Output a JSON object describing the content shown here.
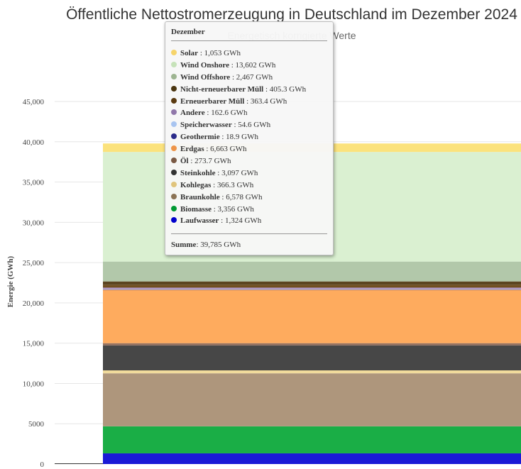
{
  "chart_data": {
    "type": "bar",
    "stacked": true,
    "title": "Öffentliche Nettostromerzeugung in Deutschland im Dezember 2024",
    "subtitle": "Energetisch korrigierte Werte",
    "ylabel": "Energie (GWh)",
    "ylim": [
      0,
      45000
    ],
    "yticks": [
      0,
      5000,
      10000,
      15000,
      20000,
      25000,
      30000,
      35000,
      40000,
      45000
    ],
    "ytick_labels": [
      "0",
      "5000",
      "10,000",
      "15,000",
      "20,000",
      "25,000",
      "30,000",
      "35,000",
      "40,000",
      "45,000"
    ],
    "categories": [
      "Dezember"
    ],
    "unit": "GWh",
    "series": [
      {
        "name": "Laufwasser",
        "value": 1324,
        "display": "1,324",
        "color": "#1a1ad6",
        "dot": "#0000cc"
      },
      {
        "name": "Biomasse",
        "value": 3356,
        "display": "3,356",
        "color": "#1aae46",
        "dot": "#009933"
      },
      {
        "name": "Braunkohle",
        "value": 6578,
        "display": "6,578",
        "color": "#ae967c",
        "dot": "#8b7355"
      },
      {
        "name": "Kohlegas",
        "value": 366.3,
        "display": "366.3",
        "color": "#f1db9c",
        "dot": "#e0c47c"
      },
      {
        "name": "Steinkohle",
        "value": 3097,
        "display": "3,097",
        "color": "#474747",
        "dot": "#333333"
      },
      {
        "name": "Öl",
        "value": 273.7,
        "display": "273.7",
        "color": "#937060",
        "dot": "#7a5a44"
      },
      {
        "name": "Erdgas",
        "value": 6663,
        "display": "6,663",
        "color": "#feab5e",
        "dot": "#ee9448"
      },
      {
        "name": "Geothermie",
        "value": 18.9,
        "display": "18.9",
        "color": "#3b3b9b",
        "dot": "#2a2a8a"
      },
      {
        "name": "Speicherwasser",
        "value": 54.6,
        "display": "54.6",
        "color": "#bcd4f5",
        "dot": "#a8c4f0"
      },
      {
        "name": "Andere",
        "value": 162.6,
        "display": "162.6",
        "color": "#a98bbf",
        "dot": "#9077aa"
      },
      {
        "name": "Erneuerbarer Müll",
        "value": 363.4,
        "display": "363.4",
        "color": "#704f21",
        "dot": "#5a3a10"
      },
      {
        "name": "Nicht-erneuerbarer Müll",
        "value": 405.3,
        "display": "405.3",
        "color": "#5c4521",
        "dot": "#4a3510"
      },
      {
        "name": "Wind Offshore",
        "value": 2467,
        "display": "2,467",
        "color": "#b2c8aa",
        "dot": "#9db491"
      },
      {
        "name": "Wind Onshore",
        "value": 13602,
        "display": "13,602",
        "color": "#daf0d1",
        "dot": "#c6e2b9"
      },
      {
        "name": "Solar",
        "value": 1053,
        "display": "1,053",
        "color": "#fbe27c",
        "dot": "#f6d46a"
      }
    ],
    "total": 39785,
    "total_display": "39,785"
  },
  "tooltip": {
    "header": "Dezember",
    "total_label": "Summe",
    "total_value": "39,785 GWh"
  }
}
